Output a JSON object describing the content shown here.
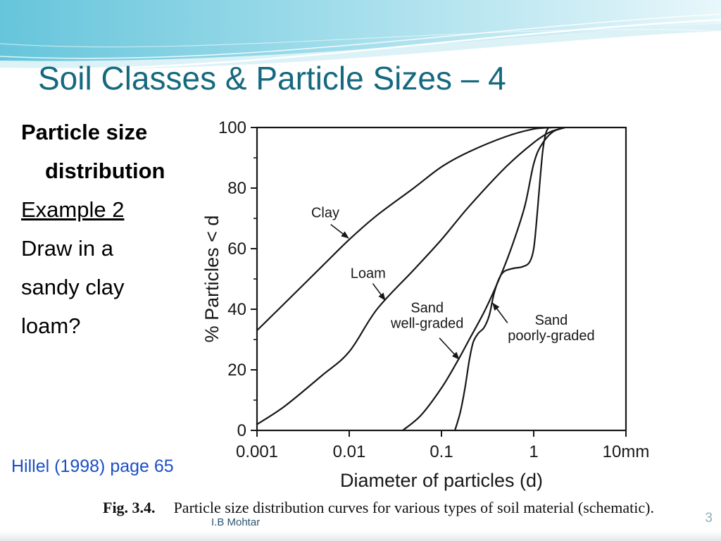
{
  "slide": {
    "title": "Soil Classes & Particle Sizes – 4",
    "body_lines": [
      "Particle size",
      "distribution",
      "Example 2",
      "Draw in a",
      "sandy clay",
      "loam?"
    ],
    "reference": "Hillel (1998) page 65",
    "figure_label": "Fig. 3.4.",
    "figure_caption": "Particle size distribution curves for various types of soil material (schematic).",
    "footer_author": "I.B Mohtar",
    "page_number": "3"
  },
  "colors": {
    "title_teal": "#15697f",
    "reference_blue": "#1c4fc5",
    "footer_teal": "#2b5570",
    "page_number_gray": "#8fb0ba",
    "chart_ink": "#171717",
    "header_teal": "#66c5db",
    "header_mid": "#9fdcea",
    "header_light": "#e8f7fb"
  },
  "chart_data": {
    "type": "line",
    "x_scale": "log",
    "xlim": [
      0.001,
      10
    ],
    "ylim": [
      0,
      100
    ],
    "xlabel": "Diameter of particles (d)",
    "ylabel": "% Particles < d",
    "grid": false,
    "legend": "none",
    "x_ticks": [
      {
        "value": 0.001,
        "label": "0.001"
      },
      {
        "value": 0.01,
        "label": "0.01"
      },
      {
        "value": 0.1,
        "label": "0.1"
      },
      {
        "value": 1,
        "label": "1"
      },
      {
        "value": 10,
        "label": "10mm"
      }
    ],
    "y_ticks": [
      {
        "value": 0,
        "label": "0"
      },
      {
        "value": 20,
        "label": "20"
      },
      {
        "value": 40,
        "label": "40"
      },
      {
        "value": 60,
        "label": "60"
      },
      {
        "value": 80,
        "label": "80"
      },
      {
        "value": 100,
        "label": "100"
      }
    ],
    "y_minor_ticks": [
      10,
      30,
      50,
      70,
      90
    ],
    "series": [
      {
        "name": "Clay",
        "points": [
          [
            0.001,
            33
          ],
          [
            0.002,
            42
          ],
          [
            0.005,
            54
          ],
          [
            0.01,
            63
          ],
          [
            0.02,
            71
          ],
          [
            0.05,
            80
          ],
          [
            0.1,
            87
          ],
          [
            0.2,
            92
          ],
          [
            0.5,
            97
          ],
          [
            1,
            99.5
          ],
          [
            1.6,
            100
          ]
        ]
      },
      {
        "name": "Loam",
        "points": [
          [
            0.001,
            2
          ],
          [
            0.002,
            8
          ],
          [
            0.005,
            18
          ],
          [
            0.01,
            26
          ],
          [
            0.02,
            40
          ],
          [
            0.05,
            53
          ],
          [
            0.1,
            63
          ],
          [
            0.2,
            74
          ],
          [
            0.5,
            87
          ],
          [
            1,
            95
          ],
          [
            1.5,
            98.5
          ],
          [
            2.2,
            100
          ]
        ]
      },
      {
        "name": "Sand well-graded",
        "points": [
          [
            0.038,
            0
          ],
          [
            0.06,
            5
          ],
          [
            0.1,
            14
          ],
          [
            0.15,
            23
          ],
          [
            0.2,
            30
          ],
          [
            0.3,
            40
          ],
          [
            0.45,
            52
          ],
          [
            0.6,
            62
          ],
          [
            0.8,
            74
          ],
          [
            1,
            88
          ],
          [
            1.2,
            94
          ],
          [
            1.6,
            98.5
          ],
          [
            2.2,
            100
          ]
        ]
      },
      {
        "name": "Sand poorly-graded",
        "points": [
          [
            0.14,
            0
          ],
          [
            0.16,
            6
          ],
          [
            0.18,
            14
          ],
          [
            0.2,
            23
          ],
          [
            0.22,
            29
          ],
          [
            0.25,
            32
          ],
          [
            0.29,
            34
          ],
          [
            0.33,
            38
          ],
          [
            0.37,
            45
          ],
          [
            0.42,
            50
          ],
          [
            0.48,
            52.5
          ],
          [
            0.6,
            53.5
          ],
          [
            0.75,
            54
          ],
          [
            0.9,
            55.5
          ],
          [
            1,
            60
          ],
          [
            1.08,
            70
          ],
          [
            1.15,
            80
          ],
          [
            1.25,
            92
          ],
          [
            1.35,
            98
          ],
          [
            1.45,
            100
          ]
        ]
      }
    ],
    "annotations": [
      {
        "lines": [
          "Clay"
        ],
        "at": [
          0.0055,
          72
        ],
        "arrow_from": [
          0.0063,
          68
        ],
        "arrow_to": [
          0.0098,
          63.5
        ]
      },
      {
        "lines": [
          "Loam"
        ],
        "at": [
          0.016,
          52
        ],
        "arrow_from": [
          0.018,
          48.5
        ],
        "arrow_to": [
          0.0245,
          43
        ]
      },
      {
        "lines": [
          "Sand",
          "well-graded"
        ],
        "at": [
          0.07,
          38
        ],
        "arrow_from": [
          0.095,
          30.5
        ],
        "arrow_to": [
          0.155,
          23.5
        ]
      },
      {
        "lines": [
          "Sand",
          "poorly-graded"
        ],
        "at": [
          1.55,
          34
        ],
        "arrow_from": [
          0.52,
          35.5
        ],
        "arrow_to": [
          0.36,
          42
        ]
      }
    ]
  }
}
